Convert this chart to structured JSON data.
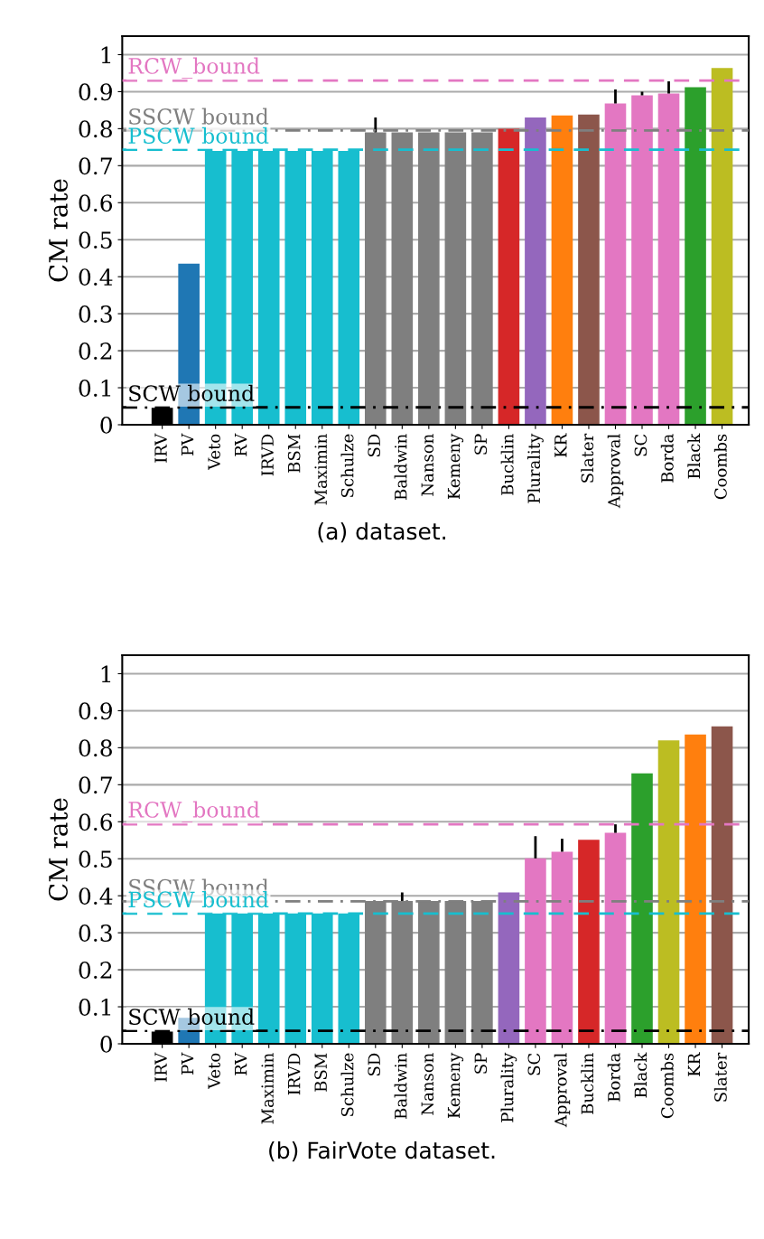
{
  "chart_data": [
    {
      "type": "bar",
      "ylabel": "CM rate",
      "annotations": [
        "(a) dataset."
      ],
      "categories": [
        "IRV",
        "PV",
        "Veto",
        "RV",
        "IRVD",
        "BSM",
        "Maximin",
        "Schulze",
        "SD",
        "Baldwin",
        "Nanson",
        "Kemeny",
        "SP",
        "Bucklin",
        "Plurality",
        "KR",
        "Slater",
        "Approval",
        "SC",
        "Borda",
        "Black",
        "Coombs"
      ],
      "values": [
        0.046,
        0.435,
        0.74,
        0.74,
        0.74,
        0.74,
        0.74,
        0.74,
        0.79,
        0.79,
        0.79,
        0.79,
        0.79,
        0.8,
        0.83,
        0.836,
        0.838,
        0.868,
        0.89,
        0.895,
        0.912,
        0.964
      ],
      "colors": [
        "#000000",
        "#1f77b4",
        "#17becf",
        "#17becf",
        "#17becf",
        "#17becf",
        "#17becf",
        "#17becf",
        "#7f7f7f",
        "#7f7f7f",
        "#7f7f7f",
        "#7f7f7f",
        "#7f7f7f",
        "#d62728",
        "#9467bd",
        "#ff7f0e",
        "#8c564b",
        "#e377c2",
        "#e377c2",
        "#e377c2",
        "#2ca02c",
        "#bcbd22"
      ],
      "errors": [
        null,
        null,
        null,
        null,
        null,
        null,
        null,
        null,
        [
          0.79,
          0.83
        ],
        null,
        null,
        null,
        null,
        null,
        null,
        null,
        null,
        [
          0.868,
          0.906
        ],
        [
          0.89,
          0.9
        ],
        [
          0.895,
          0.928
        ],
        null,
        null
      ],
      "ylim": [
        0,
        1.05
      ],
      "yticks": [
        0,
        0.1,
        0.2,
        0.3,
        0.4,
        0.5,
        0.6,
        0.7,
        0.8,
        0.9,
        1
      ],
      "grid": "y",
      "ref_lines": [
        {
          "axis": "y",
          "value": 0.93,
          "label": "RCW_bound",
          "color": "#e377c2",
          "line_style": "dashed"
        },
        {
          "axis": "y",
          "value": 0.795,
          "label": "SSCW bound",
          "color": "#7f7f7f",
          "line_style": "dashdot"
        },
        {
          "axis": "y",
          "value": 0.743,
          "label": "PSCW bound",
          "color": "#17becf",
          "line_style": "dashed"
        },
        {
          "axis": "y",
          "value": 0.047,
          "label": "SCW bound",
          "color": "#000000",
          "line_style": "dashdot"
        }
      ]
    },
    {
      "type": "bar",
      "ylabel": "CM rate",
      "annotations": [
        "(b) FairVote dataset."
      ],
      "categories": [
        "IRV",
        "PV",
        "Veto",
        "RV",
        "Maximin",
        "IRVD",
        "BSM",
        "Schulze",
        "SD",
        "Baldwin",
        "Nanson",
        "Kemeny",
        "SP",
        "Plurality",
        "SC",
        "Approval",
        "Bucklin",
        "Borda",
        "Black",
        "Coombs",
        "KR",
        "Slater"
      ],
      "values": [
        0.033,
        0.07,
        0.352,
        0.352,
        0.352,
        0.352,
        0.352,
        0.352,
        0.386,
        0.386,
        0.386,
        0.386,
        0.386,
        0.409,
        0.501,
        0.519,
        0.551,
        0.57,
        0.731,
        0.82,
        0.836,
        0.858
      ],
      "colors": [
        "#000000",
        "#1f77b4",
        "#17becf",
        "#17becf",
        "#17becf",
        "#17becf",
        "#17becf",
        "#17becf",
        "#7f7f7f",
        "#7f7f7f",
        "#7f7f7f",
        "#7f7f7f",
        "#7f7f7f",
        "#9467bd",
        "#e377c2",
        "#e377c2",
        "#d62728",
        "#e377c2",
        "#2ca02c",
        "#bcbd22",
        "#ff7f0e",
        "#8c564b"
      ],
      "errors": [
        null,
        null,
        null,
        null,
        null,
        null,
        null,
        null,
        null,
        [
          0.386,
          0.409
        ],
        null,
        null,
        null,
        null,
        [
          0.501,
          0.561
        ],
        [
          0.519,
          0.554
        ],
        null,
        [
          0.57,
          0.593
        ],
        null,
        null,
        null,
        null
      ],
      "ylim": [
        0,
        1.05
      ],
      "yticks": [
        0,
        0.1,
        0.2,
        0.3,
        0.4,
        0.5,
        0.6,
        0.7,
        0.8,
        0.9,
        1
      ],
      "grid": "y",
      "ref_lines": [
        {
          "axis": "y",
          "value": 0.593,
          "label": "RCW_bound",
          "color": "#e377c2",
          "line_style": "dashed"
        },
        {
          "axis": "y",
          "value": 0.385,
          "label": "SSCW bound",
          "color": "#7f7f7f",
          "line_style": "dashdot"
        },
        {
          "axis": "y",
          "value": 0.352,
          "label": "PSCW bound",
          "color": "#17becf",
          "line_style": "dashed"
        },
        {
          "axis": "y",
          "value": 0.035,
          "label": "SCW bound",
          "color": "#000000",
          "line_style": "dashdot"
        }
      ]
    }
  ]
}
